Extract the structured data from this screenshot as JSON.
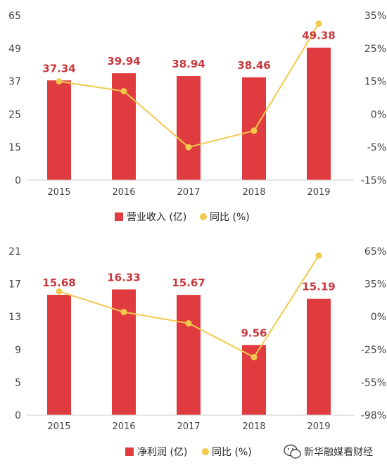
{
  "chart_data": [
    {
      "type": "bar",
      "categories": [
        "2015",
        "2016",
        "2017",
        "2018",
        "2019"
      ],
      "series": [
        {
          "name": "营业收入 (亿)",
          "type": "bar",
          "axis": "left",
          "values": [
            37.34,
            39.94,
            38.94,
            38.46,
            49.38
          ]
        },
        {
          "name": "同比 (%)",
          "type": "line",
          "axis": "right",
          "values": [
            15,
            10.5,
            -5,
            -2.5,
            32.5
          ]
        }
      ],
      "data_labels": [
        "37.34",
        "39.94",
        "38.94",
        "38.46",
        "49.38"
      ],
      "left_ticks": [
        "65",
        "49",
        "37",
        "25",
        "15",
        "0"
      ],
      "right_ticks": [
        "35%",
        "25%",
        "15%",
        "0%",
        "-5%",
        "-15%"
      ],
      "title": "",
      "xlabel": "",
      "ylabel": "",
      "grid": false,
      "legend": "bottom-center"
    },
    {
      "type": "bar",
      "categories": [
        "2015",
        "2016",
        "2017",
        "2018",
        "2019"
      ],
      "series": [
        {
          "name": "净利润 (亿)",
          "type": "bar",
          "axis": "left",
          "values": [
            15.68,
            16.33,
            15.67,
            9.56,
            15.19
          ]
        },
        {
          "name": "同比 (%)",
          "type": "line",
          "axis": "right",
          "values": [
            27,
            5,
            -5,
            -32,
            61
          ]
        }
      ],
      "data_labels": [
        "15.68",
        "16.33",
        "15.67",
        "9.56",
        "15.19"
      ],
      "left_ticks": [
        "21",
        "17",
        "13",
        "9",
        "5",
        "0"
      ],
      "right_ticks": [
        "65%",
        "35%",
        "0%",
        "-25%",
        "-55%",
        "-98%"
      ],
      "title": "",
      "xlabel": "",
      "ylabel": "",
      "grid": false,
      "legend": "bottom-center"
    }
  ],
  "colors": {
    "bar": "#e03c3f",
    "line": "#f2c94c",
    "label": "#c9383c"
  },
  "watermark": {
    "text": "新华融媒看财经",
    "icon": "wechat-icon"
  }
}
